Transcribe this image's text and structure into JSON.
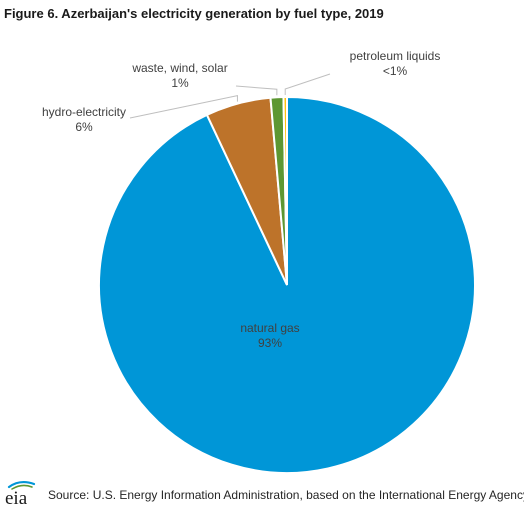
{
  "chart_data": {
    "type": "pie",
    "title": "Figure 6. Azerbaijan's electricity generation by fuel type, 2019",
    "slices": [
      {
        "name": "natural gas",
        "value": 93,
        "label": "93%",
        "color": "#0096d7"
      },
      {
        "name": "hydro-electricity",
        "value": 5.6,
        "label": "6%",
        "color": "#bd732a"
      },
      {
        "name": "waste, wind, solar",
        "value": 1.1,
        "label": "1%",
        "color": "#5d9732"
      },
      {
        "name": "petroleum liquids",
        "value": 0.3,
        "label": "<1%",
        "color": "#ffc20e"
      }
    ],
    "source": "Source: U.S. Energy Information Administration, based on the International Energy Agency"
  },
  "logo_text": "eia"
}
